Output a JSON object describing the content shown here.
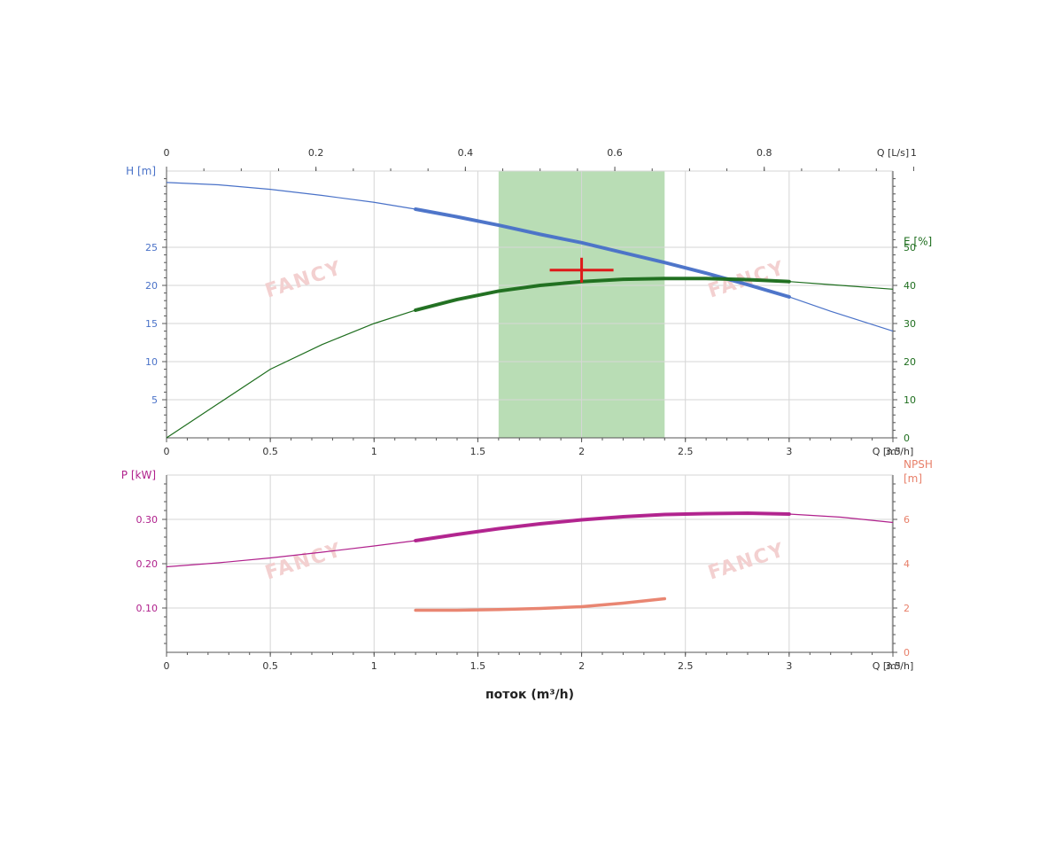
{
  "colors": {
    "head": "#4a72c8",
    "efficiency": "#1e6e1e",
    "power": "#b0208c",
    "npsh": "#e8806a",
    "duty": "#dd1a1a",
    "band": "#a8d5a2",
    "grid": "#d6d6d6",
    "axis": "#555555"
  },
  "watermark": "FANCY",
  "chart_data": [
    {
      "type": "line",
      "panel": "top",
      "x_label": "Q [m³/h]",
      "x_range": [
        0,
        3.5
      ],
      "x_ticks": [
        "0",
        "0.5",
        "1",
        "1.5",
        "2",
        "2.5",
        "3",
        "3.5"
      ],
      "x_tick_values": [
        0,
        0.5,
        1,
        1.5,
        2,
        2.5,
        3,
        3.5
      ],
      "top_axis": {
        "label": "Q [L/s]",
        "range_ls": [
          0,
          1
        ],
        "ticks": [
          "0",
          "0.2",
          "0.4",
          "0.6",
          "0.8",
          "1"
        ],
        "tick_values": [
          0,
          0.2,
          0.4,
          0.6,
          0.8,
          1
        ]
      },
      "y_left": {
        "label": "H [m]",
        "range": [
          0,
          35
        ],
        "ticks": [
          "5",
          "10",
          "15",
          "20",
          "25"
        ],
        "tick_values": [
          5,
          10,
          15,
          20,
          25
        ]
      },
      "y_right": {
        "label": "E [%]",
        "range": [
          0,
          70
        ],
        "ticks": [
          "0",
          "10",
          "20",
          "30",
          "40",
          "50"
        ],
        "tick_values": [
          0,
          10,
          20,
          30,
          40,
          50
        ]
      },
      "band": {
        "x_from": 1.6,
        "x_to": 2.4
      },
      "duty_point": {
        "x": 2.0,
        "y": 22.0
      },
      "series": [
        {
          "key": "head",
          "axis": "left",
          "x": [
            0,
            0.25,
            0.5,
            0.75,
            1,
            1.2,
            1.4,
            1.6,
            1.8,
            2.0,
            2.2,
            2.4,
            2.6,
            2.8,
            3.0,
            3.2,
            3.5
          ],
          "y": [
            33.5,
            33.2,
            32.6,
            31.8,
            30.9,
            30.0,
            29.0,
            27.9,
            26.7,
            25.6,
            24.3,
            23.0,
            21.6,
            20.1,
            18.5,
            16.6,
            14.0
          ],
          "bold_range": [
            1.2,
            3.0
          ]
        },
        {
          "key": "efficiency",
          "axis": "right",
          "x": [
            0,
            0.25,
            0.5,
            0.75,
            1,
            1.2,
            1.4,
            1.6,
            1.8,
            2.0,
            2.2,
            2.4,
            2.6,
            2.8,
            3.0,
            3.25,
            3.5
          ],
          "y": [
            0,
            9,
            18,
            24.5,
            30,
            33.5,
            36.3,
            38.5,
            40,
            41,
            41.6,
            41.8,
            41.8,
            41.5,
            41,
            40,
            39
          ],
          "bold_range": [
            1.2,
            3.0
          ]
        }
      ]
    },
    {
      "type": "line",
      "panel": "bottom",
      "x_label": "Q [m³/h]",
      "x_range": [
        0,
        3.5
      ],
      "x_ticks": [
        "0",
        "0.5",
        "1",
        "1.5",
        "2",
        "2.5",
        "3",
        "3.5"
      ],
      "x_tick_values": [
        0,
        0.5,
        1,
        1.5,
        2,
        2.5,
        3,
        3.5
      ],
      "x_title": "поток (m³/h)",
      "y_left": {
        "label": "P [kW]",
        "range": [
          0,
          0.4
        ],
        "ticks": [
          "0.10",
          "0.20",
          "0.30"
        ],
        "tick_values": [
          0.1,
          0.2,
          0.3
        ]
      },
      "y_right": {
        "label": "NPSH",
        "label2": "[m]",
        "range": [
          0,
          8
        ],
        "ticks": [
          "0",
          "2",
          "4",
          "6"
        ],
        "tick_values": [
          0,
          2,
          4,
          6
        ]
      },
      "series": [
        {
          "key": "power",
          "axis": "left",
          "x": [
            0,
            0.25,
            0.5,
            0.75,
            1,
            1.2,
            1.4,
            1.6,
            1.8,
            2.0,
            2.2,
            2.4,
            2.6,
            2.8,
            3.0,
            3.25,
            3.5
          ],
          "y": [
            0.193,
            0.202,
            0.213,
            0.226,
            0.24,
            0.252,
            0.266,
            0.279,
            0.29,
            0.299,
            0.306,
            0.311,
            0.313,
            0.314,
            0.312,
            0.305,
            0.293
          ],
          "bold_range": [
            1.2,
            3.0
          ]
        },
        {
          "key": "npsh",
          "axis": "right",
          "x": [
            1.2,
            1.4,
            1.6,
            1.8,
            2.0,
            2.2,
            2.4
          ],
          "y": [
            1.9,
            1.9,
            1.93,
            1.98,
            2.06,
            2.22,
            2.42
          ],
          "bold_range": [
            1.2,
            2.4
          ]
        }
      ]
    }
  ]
}
